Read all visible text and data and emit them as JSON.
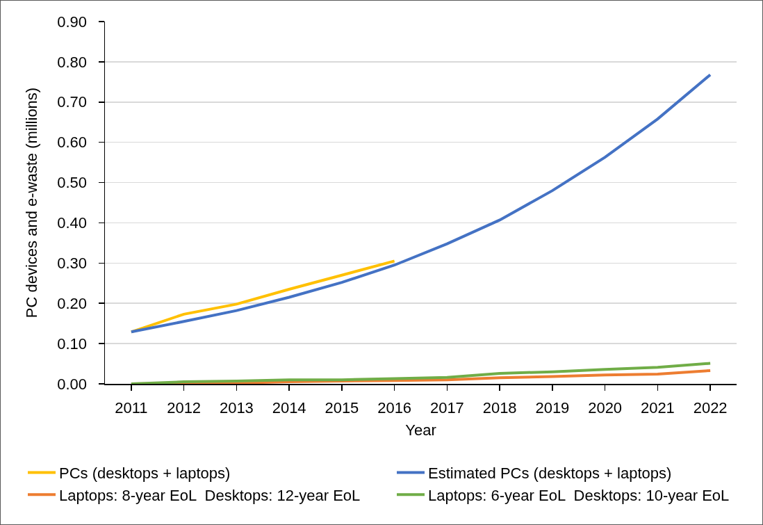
{
  "chart_data": {
    "type": "line",
    "x": [
      2011,
      2012,
      2013,
      2014,
      2015,
      2016,
      2017,
      2018,
      2019,
      2020,
      2021,
      2022
    ],
    "series": [
      {
        "name": "PCs (desktops + laptops)",
        "color": "#ffc000",
        "values": [
          0.129,
          0.173,
          0.198,
          0.235,
          0.27,
          0.305,
          null,
          null,
          null,
          null,
          null,
          null
        ]
      },
      {
        "name": "Estimated PCs (desktops + laptops)",
        "color": "#4472c4",
        "values": [
          0.129,
          0.155,
          0.182,
          0.215,
          0.252,
          0.295,
          0.348,
          0.407,
          0.48,
          0.563,
          0.658,
          0.768
        ]
      },
      {
        "name": "Laptops: 8-year EoL  Desktops: 12-year EoL",
        "color": "#ed7d31",
        "values": [
          0,
          0.001,
          0.002,
          0.005,
          0.007,
          0.008,
          0.01,
          0.015,
          0.018,
          0.022,
          0.024,
          0.033
        ]
      },
      {
        "name": "Laptops: 6-year EoL  Desktops: 10-year EoL",
        "color": "#70ad47",
        "values": [
          0,
          0.005,
          0.007,
          0.01,
          0.01,
          0.013,
          0.016,
          0.026,
          0.03,
          0.036,
          0.041,
          0.051
        ]
      }
    ],
    "xlabel": "Year",
    "ylabel": "PC devices and e-waste (millions)",
    "xlim": [
      2010.5,
      2022.5
    ],
    "xticks": [
      2011,
      2012,
      2013,
      2014,
      2015,
      2016,
      2017,
      2018,
      2019,
      2020,
      2021,
      2022
    ],
    "ylim": [
      0,
      0.9
    ],
    "yticks": [
      {
        "value": 0,
        "label": "0.00"
      },
      {
        "value": 0.1,
        "label": "0.10"
      },
      {
        "value": 0.2,
        "label": "0.20"
      },
      {
        "value": 0.3,
        "label": "0.30"
      },
      {
        "value": 0.4,
        "label": "0.40"
      },
      {
        "value": 0.5,
        "label": "0.50"
      },
      {
        "value": 0.6,
        "label": "0.60"
      },
      {
        "value": 0.7,
        "label": "0.70"
      },
      {
        "value": 0.8,
        "label": "0.80"
      },
      {
        "value": 0.9,
        "label": "0.90"
      }
    ],
    "grid": "y",
    "legend": "bottom",
    "marker": "none",
    "line_style": "solid"
  }
}
